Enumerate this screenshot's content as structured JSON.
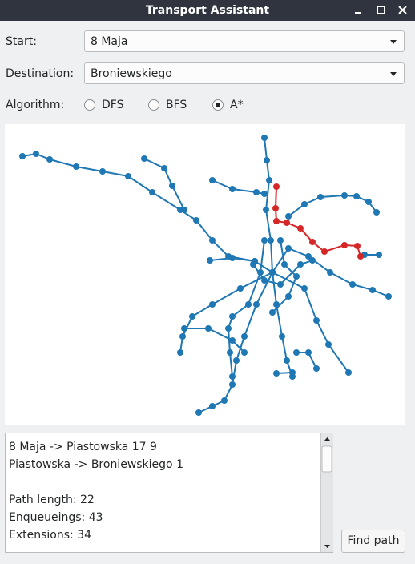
{
  "window": {
    "title": "Transport Assistant"
  },
  "form": {
    "start": {
      "label": "Start:",
      "value": "8 Maja"
    },
    "destination": {
      "label": "Destination:",
      "value": "Broniewskiego"
    },
    "algorithm": {
      "label": "Algorithm:",
      "options": [
        {
          "label": "DFS",
          "checked": false
        },
        {
          "label": "BFS",
          "checked": false
        },
        {
          "label": "A*",
          "checked": true
        }
      ]
    }
  },
  "output": {
    "route": [
      "8 Maja -> Piastowska 17 9",
      "Piastowska -> Broniewskiego 1"
    ],
    "stats": [
      "Path length: 22",
      "Enqueueings: 43",
      "Extensions: 34"
    ]
  },
  "button": {
    "label": "Find path"
  }
}
